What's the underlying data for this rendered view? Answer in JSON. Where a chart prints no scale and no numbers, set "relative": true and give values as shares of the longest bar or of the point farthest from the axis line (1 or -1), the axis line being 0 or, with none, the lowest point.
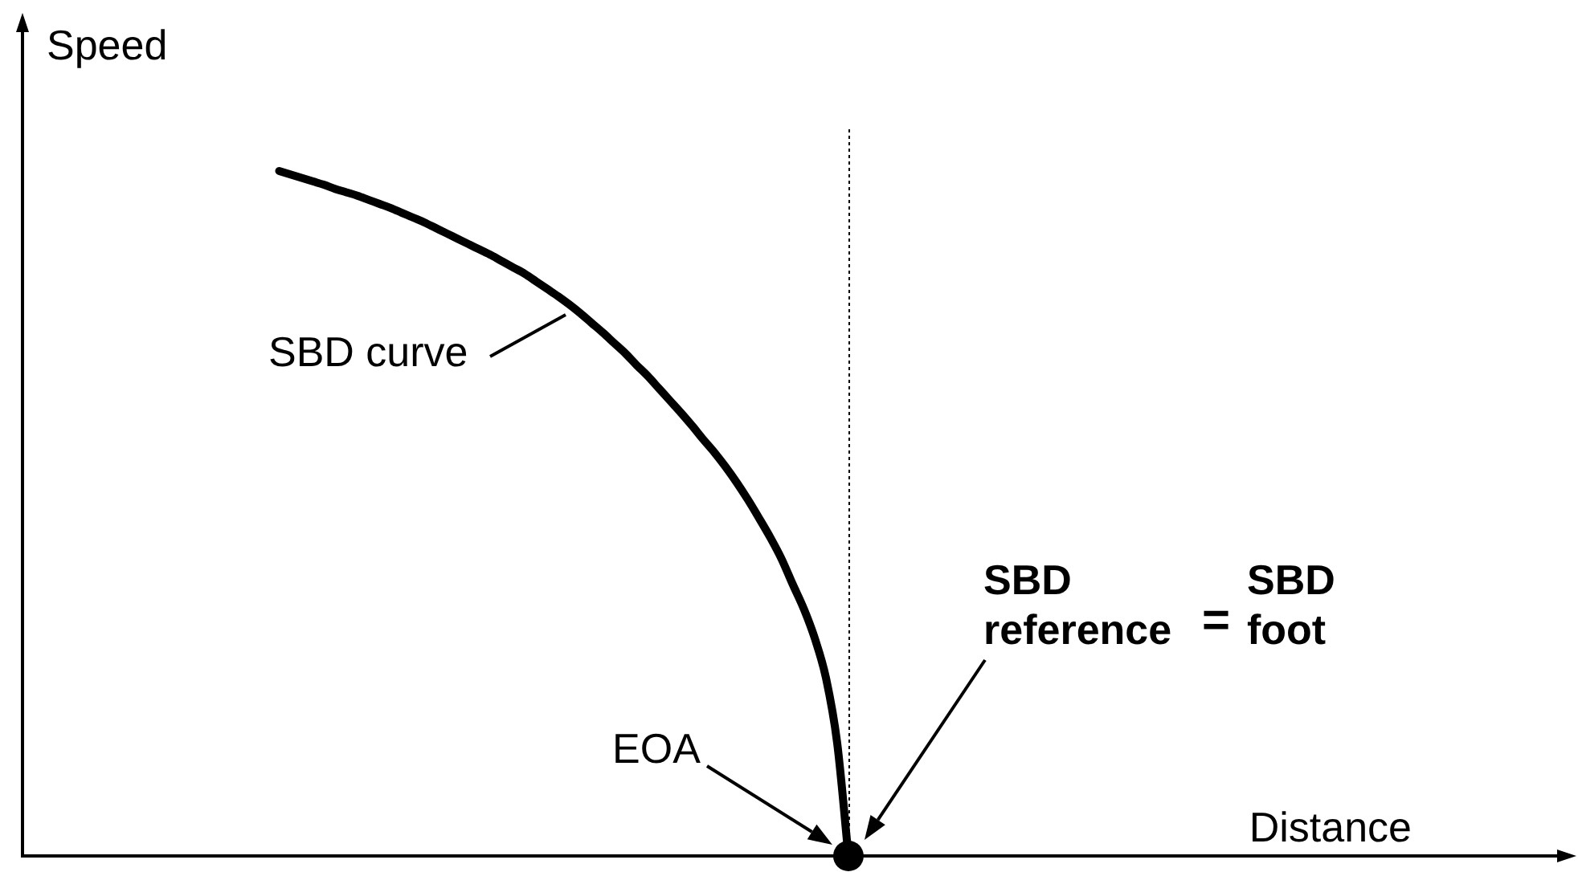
{
  "chart_data": {
    "type": "line",
    "relative": true,
    "xlabel": "Distance",
    "ylabel": "Speed",
    "categories": [
      null,
      null,
      null,
      null,
      null,
      null,
      null,
      null,
      null,
      null,
      null,
      null,
      null,
      null,
      null,
      null,
      null,
      null,
      null,
      null,
      null,
      null,
      null,
      null,
      null,
      null,
      null,
      null,
      null,
      null,
      null,
      null,
      null,
      null,
      null,
      null,
      null,
      null,
      null,
      null,
      null,
      null,
      null,
      null,
      null,
      null,
      null,
      null,
      null,
      null,
      null,
      null,
      null,
      null,
      null,
      null,
      null,
      null,
      null,
      null,
      null,
      null,
      null,
      null,
      null,
      null,
      null,
      null,
      null,
      null,
      null,
      null,
      null,
      null,
      null,
      null,
      null,
      null,
      null,
      null,
      null,
      null,
      null,
      null,
      null,
      null,
      null,
      null,
      null,
      null,
      null,
      null,
      null,
      null,
      null,
      null,
      null,
      null,
      null,
      null,
      null,
      null,
      null,
      null,
      null,
      null,
      null,
      null,
      null,
      null,
      null,
      null,
      null,
      null,
      null,
      null,
      null,
      null,
      null,
      null,
      null,
      null,
      null,
      null,
      null,
      null,
      null,
      null,
      null,
      null,
      null,
      null,
      null,
      null,
      null,
      null,
      null,
      null,
      null
    ],
    "series": [
      {
        "color": "#000000",
        "marker": "none",
        "values": [
          null,
          null,
          null,
          null,
          null,
          null,
          null,
          null,
          null,
          null,
          null,
          null,
          null,
          null,
          null,
          null,
          null,
          null,
          null,
          null,
          null,
          null,
          null,
          1,
          0.995,
          0.99,
          0.985,
          0.98,
          0.974,
          0.969,
          0.964,
          0.958,
          0.952,
          0.946,
          0.939,
          0.932,
          0.925,
          0.917,
          0.909,
          0.901,
          0.893,
          0.885,
          0.877,
          0.868,
          0.859,
          0.85,
          0.839,
          0.828,
          0.817,
          0.805,
          0.792,
          0.778,
          0.764,
          0.749,
          0.734,
          0.717,
          0.701,
          0.683,
          0.665,
          0.647,
          0.628,
          0.608,
          0.589,
          0.568,
          0.545,
          0.52,
          0.493,
          0.465,
          0.434,
          0.397,
          0.361,
          0.317,
          0.259,
          0.164,
          0,
          null,
          null,
          null,
          null,
          null,
          null,
          null,
          null,
          null,
          null,
          null,
          null,
          null,
          null,
          null,
          null,
          null,
          null,
          null,
          null,
          null,
          null,
          null,
          null,
          null,
          null,
          null,
          null,
          null,
          null,
          null,
          null,
          null,
          null,
          null,
          null,
          null,
          null,
          null,
          null,
          null,
          null,
          null,
          null,
          null,
          null,
          null,
          null,
          null,
          null,
          null,
          null,
          null,
          null,
          null,
          null,
          null,
          null,
          null,
          null,
          null,
          null,
          null,
          null
        ]
      },
      {
        "type": "line",
        "color": "#000000",
        "marker": "circle",
        "values": [
          null,
          null,
          null,
          null,
          null,
          null,
          null,
          null,
          null,
          null,
          null,
          null,
          null,
          null,
          null,
          null,
          null,
          null,
          null,
          null,
          null,
          null,
          null,
          null,
          null,
          null,
          null,
          null,
          null,
          null,
          null,
          null,
          null,
          null,
          null,
          null,
          null,
          null,
          null,
          null,
          null,
          null,
          null,
          null,
          null,
          null,
          null,
          null,
          null,
          null,
          null,
          null,
          null,
          null,
          null,
          null,
          null,
          null,
          null,
          null,
          null,
          null,
          null,
          null,
          null,
          null,
          null,
          null,
          null,
          null,
          null,
          null,
          null,
          null,
          0,
          null,
          null,
          null,
          null,
          null,
          null,
          null,
          null,
          null,
          null,
          null,
          null,
          null,
          null,
          null,
          null,
          null,
          null,
          null,
          null,
          null,
          null,
          null,
          null,
          null,
          null,
          null,
          null,
          null,
          null,
          null,
          null,
          null,
          null,
          null,
          null,
          null,
          null,
          null,
          null,
          null,
          null,
          null,
          null,
          null,
          null,
          null,
          null,
          null,
          null,
          null,
          null,
          null,
          null,
          null,
          null,
          null,
          null,
          null,
          null,
          null,
          null,
          null,
          null
        ]
      }
    ],
    "ref_lines": [
      {
        "axis": "x",
        "color": "#000000",
        "line_style": "dotted"
      }
    ],
    "annotations": [
      "SBD curve",
      "EOA",
      "SBD reference",
      "=",
      "SBD foot"
    ]
  }
}
